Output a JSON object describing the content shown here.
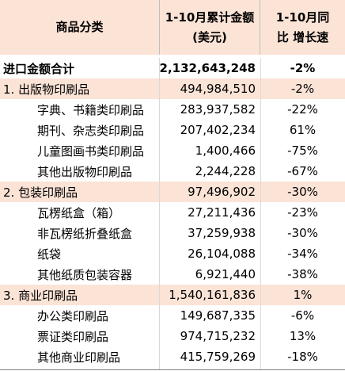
{
  "header": {
    "col1": "商品分类",
    "col2_line1": "1-10月累计金额",
    "col2_line2": "(美元)",
    "col3_line1": "1-10月同",
    "col3_line2": "比  增长速"
  },
  "rows": [
    {
      "label": "进口金额合计",
      "amount": "2,132,643,248",
      "growth": "-2%",
      "kind": "total"
    },
    {
      "label": "1. 出版物印刷品",
      "amount": "494,984,510",
      "growth": "-2%",
      "kind": "cat"
    },
    {
      "label": "字典、书籍类印刷品",
      "amount": "283,937,582",
      "growth": "-22%",
      "kind": "sub"
    },
    {
      "label": "期刊、杂志类印刷品",
      "amount": "207,402,234",
      "growth": "61%",
      "kind": "sub"
    },
    {
      "label": "儿童图画书类印刷品",
      "amount": "1,400,466",
      "growth": "-75%",
      "kind": "sub"
    },
    {
      "label": "其他出版物印刷品",
      "amount": "2,244,228",
      "growth": "-67%",
      "kind": "sub"
    },
    {
      "label": "2. 包装印刷品",
      "amount": "97,496,902",
      "growth": "-30%",
      "kind": "cat"
    },
    {
      "label": "瓦楞纸盒（箱）",
      "amount": "27,211,436",
      "growth": "-23%",
      "kind": "sub"
    },
    {
      "label": "非瓦楞纸折叠纸盒",
      "amount": "37,259,938",
      "growth": "-30%",
      "kind": "sub"
    },
    {
      "label": "纸袋",
      "amount": "26,104,088",
      "growth": "-34%",
      "kind": "sub"
    },
    {
      "label": "其他纸质包装容器",
      "amount": "6,921,440",
      "growth": "-38%",
      "kind": "sub"
    },
    {
      "label": "3. 商业印刷品",
      "amount": "1,540,161,836",
      "growth": "1%",
      "kind": "cat"
    },
    {
      "label": "办公类印刷品",
      "amount": "149,687,335",
      "growth": "-6%",
      "kind": "sub"
    },
    {
      "label": "票证类印刷品",
      "amount": "974,715,232",
      "growth": "13%",
      "kind": "sub"
    },
    {
      "label": "其他商业印刷品",
      "amount": "415,759,269",
      "growth": "-18%",
      "kind": "sub"
    }
  ]
}
